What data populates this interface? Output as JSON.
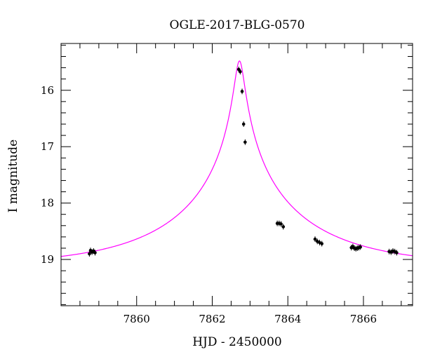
{
  "chart_data": {
    "type": "scatter",
    "title": "OGLE-2017-BLG-0570",
    "xlabel": "HJD - 2450000",
    "ylabel": "I magnitude",
    "xlim": [
      7858.0,
      7867.3
    ],
    "ylim": [
      19.82,
      15.17
    ],
    "y_inverted": true,
    "grid": false,
    "x_major_ticks": [
      7860,
      7862,
      7864,
      7866
    ],
    "x_major_tick_labels": [
      "7860",
      "7862",
      "7864",
      "7866"
    ],
    "y_major_ticks": [
      16,
      17,
      18,
      19
    ],
    "y_major_tick_labels": [
      "16",
      "17",
      "18",
      "19"
    ],
    "colors": {
      "model": "#ff00ff",
      "data": "#000000",
      "frame": "#000000"
    },
    "series": [
      {
        "kind": "points",
        "x": [
          7858.75,
          7858.78,
          7858.82,
          7858.86,
          7858.9,
          7862.7,
          7862.74,
          7862.79,
          7862.83,
          7862.87,
          7863.72,
          7863.77,
          7863.82,
          7863.88,
          7864.72,
          7864.78,
          7864.84,
          7864.9,
          7865.68,
          7865.72,
          7865.76,
          7865.8,
          7865.84,
          7865.88,
          7865.92,
          7866.68,
          7866.73,
          7866.78,
          7866.83,
          7866.88
        ],
        "y": [
          18.9,
          18.84,
          18.87,
          18.85,
          18.88,
          15.63,
          15.67,
          16.02,
          16.6,
          16.92,
          18.36,
          18.36,
          18.37,
          18.42,
          18.64,
          18.68,
          18.7,
          18.72,
          18.79,
          18.77,
          18.8,
          18.81,
          18.8,
          18.79,
          18.78,
          18.86,
          18.87,
          18.85,
          18.86,
          18.88
        ]
      },
      {
        "kind": "model",
        "t0": 7862.72,
        "u0": 0.035,
        "tE": 3.5,
        "baseline": 19.12
      }
    ]
  }
}
